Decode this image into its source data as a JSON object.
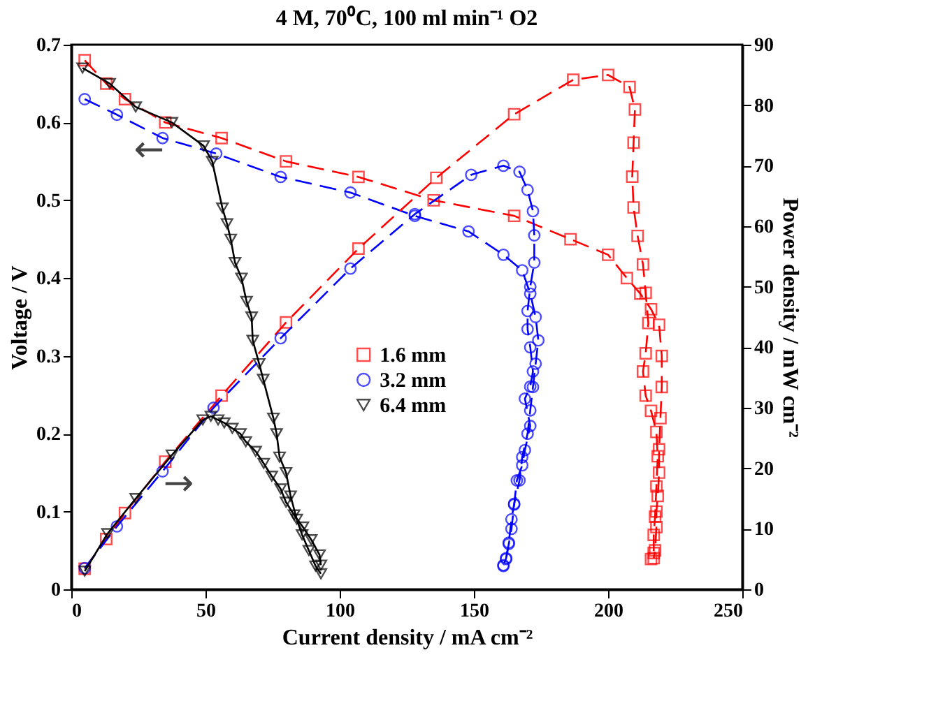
{
  "chart_data": {
    "type": "line",
    "title": "4 M, 70⁰C, 100 ml min⁻¹ O2",
    "xlabel": "Current density / mA cm⁻²",
    "ylabel": "Voltage / V",
    "y2label": "Power density / mW cm⁻²",
    "xlim": [
      0,
      250
    ],
    "xticks": [
      0,
      50,
      100,
      150,
      200,
      250
    ],
    "ylim": [
      0,
      0.7
    ],
    "yticks": [
      0,
      0.1,
      0.2,
      0.3,
      0.4,
      0.5,
      0.6,
      0.7
    ],
    "y2lim": [
      0,
      90
    ],
    "y2ticks": [
      0,
      10,
      20,
      30,
      40,
      50,
      60,
      70,
      80,
      90
    ],
    "grid": false,
    "legend": "center",
    "annotations": [
      "←",
      "→"
    ],
    "series": [
      {
        "name": "1.6 mm",
        "color": "#ff0000",
        "marker": "square",
        "line_style": "dashed",
        "x": [
          5,
          13,
          20,
          35,
          56,
          80,
          107,
          135,
          165,
          186,
          200,
          207,
          212,
          216,
          219,
          220,
          220,
          219.5,
          219,
          219,
          218.5,
          218,
          218,
          217.5,
          217
        ],
        "values": [
          0.68,
          0.65,
          0.63,
          0.6,
          0.58,
          0.55,
          0.53,
          0.5,
          0.48,
          0.45,
          0.43,
          0.4,
          0.38,
          0.36,
          0.34,
          0.3,
          0.26,
          0.22,
          0.18,
          0.15,
          0.12,
          0.1,
          0.08,
          0.05,
          0.04
        ]
      },
      {
        "name": "3.2 mm",
        "color": "#0000ff",
        "marker": "circle",
        "line_style": "dashed",
        "x": [
          5,
          17,
          34,
          54,
          78,
          104,
          128,
          148,
          161,
          168,
          171,
          173,
          174,
          173,
          172,
          171,
          170,
          168,
          167,
          165,
          164,
          163,
          162,
          161
        ],
        "values": [
          0.63,
          0.61,
          0.58,
          0.56,
          0.53,
          0.51,
          0.48,
          0.46,
          0.43,
          0.41,
          0.38,
          0.35,
          0.32,
          0.29,
          0.26,
          0.23,
          0.2,
          0.17,
          0.14,
          0.11,
          0.09,
          0.06,
          0.04,
          0.03
        ]
      },
      {
        "name": "6.4 mm",
        "color": "#000000",
        "marker": "triangle",
        "line_style": "solid",
        "x": [
          4.2,
          14.3,
          24,
          37.5,
          49.3,
          52.5,
          56.3,
          58,
          59.4,
          61,
          63.4,
          65.3,
          67.2,
          67.6,
          70,
          71.5,
          75.3,
          76.5,
          77.6,
          80,
          81.7,
          84,
          86,
          88.5,
          91,
          93
        ],
        "values": [
          0.67,
          0.65,
          0.62,
          0.6,
          0.57,
          0.55,
          0.49,
          0.47,
          0.45,
          0.42,
          0.4,
          0.37,
          0.35,
          0.32,
          0.29,
          0.27,
          0.22,
          0.2,
          0.17,
          0.15,
          0.12,
          0.09,
          0.07,
          0.05,
          0.03,
          0.02
        ]
      },
      {
        "color": "#ff0000",
        "marker": "square",
        "line_style": "dashed",
        "axis": "y2",
        "x": [
          5,
          13,
          20,
          35,
          56,
          80,
          107,
          136,
          165,
          187,
          200,
          208,
          210,
          209.5,
          209,
          209.5,
          211,
          213,
          214,
          215,
          214,
          213,
          214,
          216,
          218,
          218.5,
          218,
          217.5,
          217,
          217,
          216
        ],
        "values": [
          3.4,
          8.3,
          12.6,
          21.1,
          32,
          44.1,
          56.3,
          68,
          78.5,
          84.2,
          85,
          83,
          79.3,
          73.8,
          68.2,
          63.1,
          58.4,
          53.7,
          49,
          44,
          39,
          36,
          32,
          29.5,
          26,
          22,
          17,
          12,
          9,
          6,
          5
        ]
      },
      {
        "color": "#0000ff",
        "marker": "circle",
        "line_style": "dashed",
        "axis": "y2",
        "x": [
          5,
          17,
          34,
          53,
          78,
          104,
          128,
          149,
          161,
          167,
          170,
          172,
          172.5,
          172.5,
          171,
          170,
          170,
          171,
          172,
          171,
          169,
          171,
          169,
          168,
          166,
          165,
          164,
          163,
          162,
          161
        ],
        "values": [
          3.5,
          10.4,
          19.5,
          30,
          41.5,
          53,
          62,
          68.5,
          70,
          69,
          66,
          62.5,
          58.5,
          54,
          50,
          46,
          43,
          40,
          36,
          33.5,
          31.5,
          27,
          23,
          20.5,
          18,
          14,
          10,
          7.5,
          5,
          4
        ]
      },
      {
        "color": "#000000",
        "marker": "triangle",
        "line_style": "solid",
        "axis": "y2",
        "x": [
          5,
          13.5,
          24,
          37.5,
          49,
          52,
          54.7,
          57,
          60,
          63,
          65,
          68.7,
          71.7,
          74.7,
          78,
          80,
          83,
          86.3,
          89.4,
          92.5,
          93
        ],
        "values": [
          3.0,
          9.2,
          15,
          22.2,
          28,
          28.6,
          28,
          27.5,
          26.6,
          25.7,
          24.4,
          22.8,
          20.8,
          18.7,
          16.6,
          14.4,
          12.3,
          10.3,
          8.2,
          5.7,
          4.0
        ]
      }
    ]
  }
}
